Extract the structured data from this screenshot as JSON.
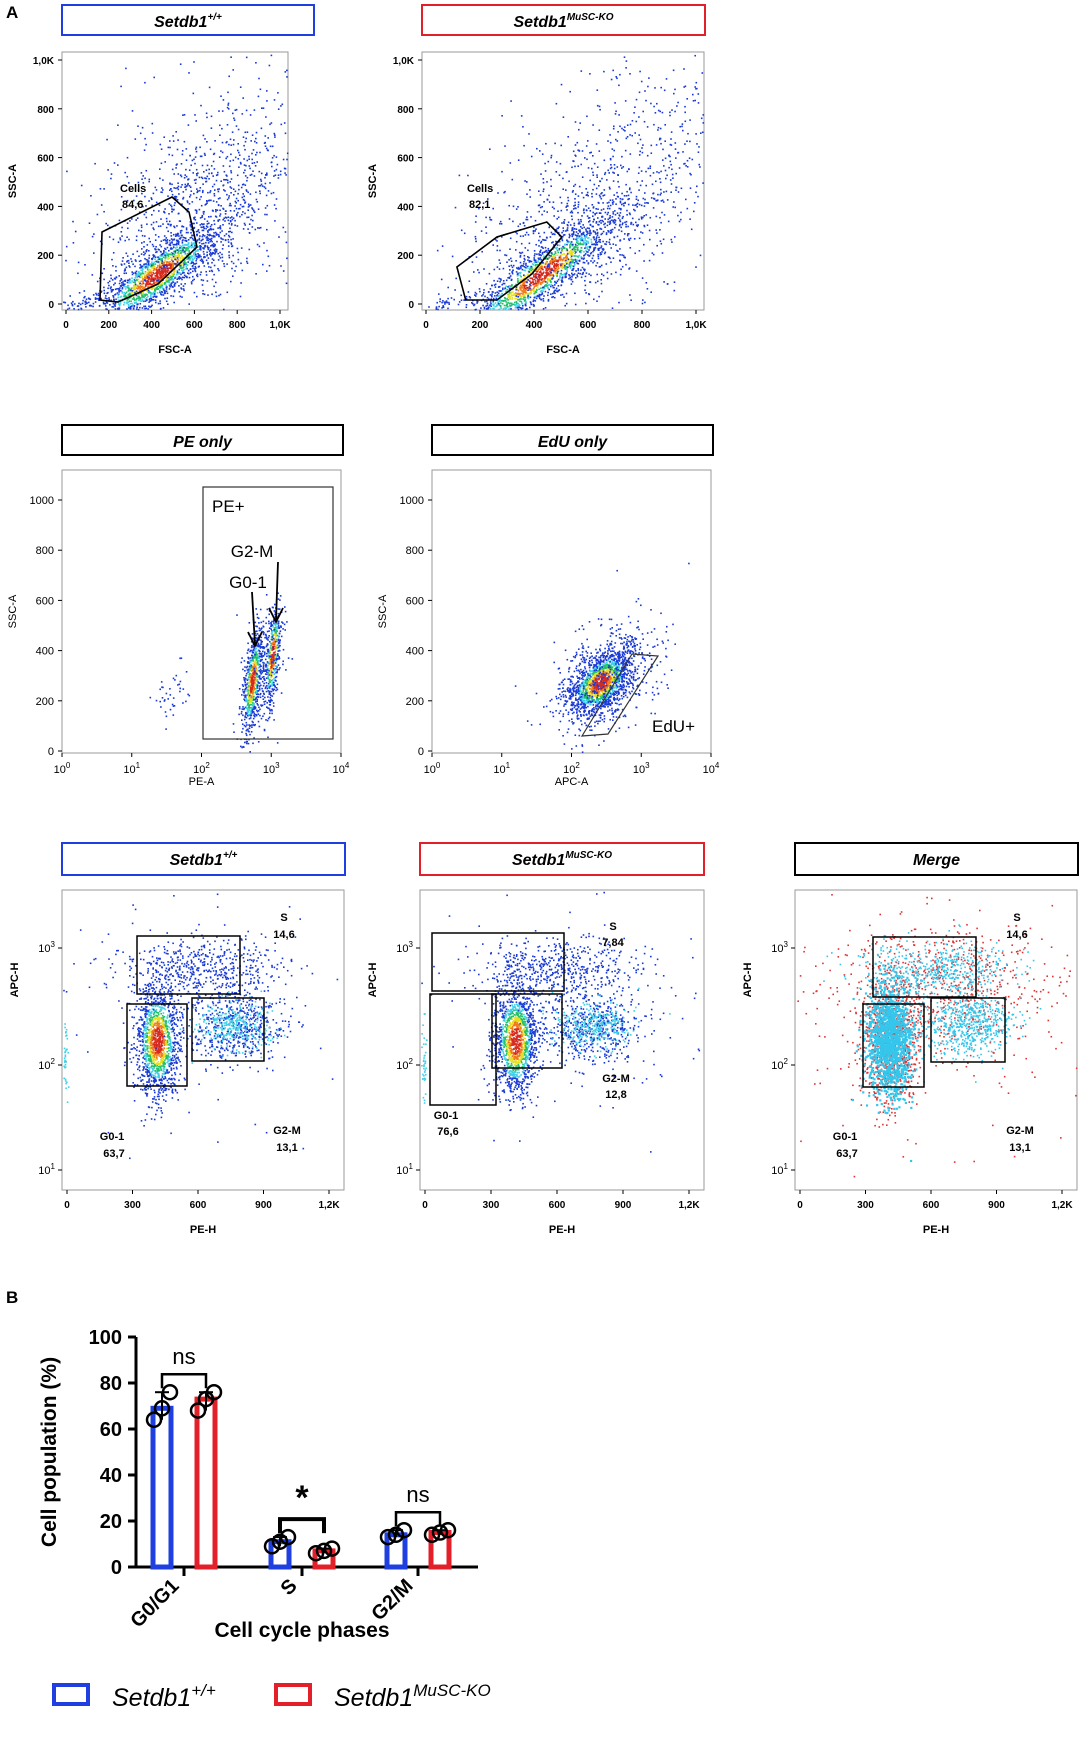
{
  "panels": {
    "a": "A",
    "b": "B"
  },
  "colors": {
    "wt": "#1f3fe0",
    "ko": "#e3202a",
    "black": "#000000",
    "dot_blue": "#1a3ad6",
    "dot_cyan": "#3fd1e8",
    "dot_green": "#22c06a",
    "dot_yellow": "#e6df1e",
    "dot_orange": "#f07a1a",
    "dot_red": "#d62a1e",
    "merge_cyan": "#35c6ec",
    "merge_red": "#dd3434"
  },
  "flow": {
    "row1": [
      {
        "title": "Setdb1",
        "sup": "+/+",
        "frame": "wt",
        "xlabel": "FSC-A",
        "ylabel": "SSC-A",
        "xticks": [
          "0",
          "200",
          "400",
          "600",
          "800",
          "1,0K"
        ],
        "yticks": [
          "0",
          "200",
          "400",
          "600",
          "800",
          "1,0K"
        ],
        "gate_name": "Cells",
        "gate_value": "84,6"
      },
      {
        "title": "Setdb1",
        "sup": "MuSC-KO",
        "frame": "ko",
        "xlabel": "FSC-A",
        "ylabel": "SSC-A",
        "xticks": [
          "0",
          "200",
          "400",
          "600",
          "800",
          "1,0K"
        ],
        "yticks": [
          "0",
          "200",
          "400",
          "600",
          "800",
          "1,0K"
        ],
        "gate_name": "Cells",
        "gate_value": "82,1"
      }
    ],
    "row2": [
      {
        "title": "PE only",
        "frame": "black",
        "xlabel": "PE-A",
        "ylabel": "SSC-A",
        "yticks": [
          "0",
          "200",
          "400",
          "600",
          "800",
          "1000"
        ],
        "xticks": [
          {
            "b": "10",
            "e": "0"
          },
          {
            "b": "10",
            "e": "1"
          },
          {
            "b": "10",
            "e": "2"
          },
          {
            "b": "10",
            "e": "3"
          },
          {
            "b": "10",
            "e": "4"
          }
        ],
        "gate": "PE+",
        "arrow1": "G0-1",
        "arrow2": "G2-M"
      },
      {
        "title": "EdU only",
        "frame": "black",
        "xlabel": "APC-A",
        "ylabel": "SSC-A",
        "yticks": [
          "0",
          "200",
          "400",
          "600",
          "800",
          "1000"
        ],
        "xticks": [
          {
            "b": "10",
            "e": "0"
          },
          {
            "b": "10",
            "e": "1"
          },
          {
            "b": "10",
            "e": "2"
          },
          {
            "b": "10",
            "e": "3"
          },
          {
            "b": "10",
            "e": "4"
          }
        ],
        "gate": "EdU+"
      }
    ],
    "row3": [
      {
        "title": "Setdb1",
        "sup": "+/+",
        "frame": "wt",
        "xlabel": "PE-H",
        "ylabel": "APC-H",
        "xticks": [
          "0",
          "300",
          "600",
          "900",
          "1,2K"
        ],
        "yticks": [
          {
            "b": "10",
            "e": "1"
          },
          {
            "b": "10",
            "e": "2"
          },
          {
            "b": "10",
            "e": "3"
          }
        ],
        "s_label": "S",
        "s_value": "14,6",
        "g2m_label": "G2-M",
        "g2m_value": "13,1",
        "g01_label": "G0-1",
        "g01_value": "63,7"
      },
      {
        "title": "Setdb1",
        "sup": "MuSC-KO",
        "frame": "ko",
        "xlabel": "PE-H",
        "ylabel": "APC-H",
        "xticks": [
          "0",
          "300",
          "600",
          "900",
          "1,2K"
        ],
        "yticks": [
          {
            "b": "10",
            "e": "1"
          },
          {
            "b": "10",
            "e": "2"
          },
          {
            "b": "10",
            "e": "3"
          }
        ],
        "s_label": "S",
        "s_value": "7,84",
        "g2m_label": "G2-M",
        "g2m_value": "12,8",
        "g01_label": "G0-1",
        "g01_value": "76,6"
      },
      {
        "title": "Merge",
        "frame": "black",
        "xlabel": "PE-H",
        "ylabel": "APC-H",
        "xticks": [
          "0",
          "300",
          "600",
          "900",
          "1,2K"
        ],
        "yticks": [
          {
            "b": "10",
            "e": "1"
          },
          {
            "b": "10",
            "e": "2"
          },
          {
            "b": "10",
            "e": "3"
          }
        ],
        "s_label": "S",
        "s_value": "14,6",
        "g2m_label": "G2-M",
        "g2m_value": "13,1",
        "g01_label": "G0-1",
        "g01_value": "63,7"
      }
    ]
  },
  "chart_data": {
    "type": "bar",
    "title": "",
    "xlabel": "Cell cycle phases",
    "ylabel": "Cell population (%)",
    "ylim": [
      0,
      100
    ],
    "yticks": [
      0,
      20,
      40,
      60,
      80,
      100
    ],
    "categories": [
      "G0/G1",
      "S",
      "G2/M"
    ],
    "series": [
      {
        "name": "Setdb1+/+",
        "label_base": "Setdb1",
        "label_sup": "+/+",
        "color": "wt",
        "values": [
          69,
          11,
          14
        ],
        "replicates": [
          [
            64,
            69,
            76
          ],
          [
            9,
            11,
            13
          ],
          [
            13,
            14,
            16
          ]
        ]
      },
      {
        "name": "Setdb1MuSC-KO",
        "label_base": "Setdb1",
        "label_sup": "MuSC-KO",
        "color": "ko",
        "values": [
          73,
          7,
          15
        ],
        "replicates": [
          [
            68,
            73,
            76
          ],
          [
            6,
            7,
            8
          ],
          [
            14,
            15,
            16
          ]
        ]
      }
    ],
    "significance": [
      "ns",
      "*",
      "ns"
    ],
    "legend": "bottom"
  }
}
